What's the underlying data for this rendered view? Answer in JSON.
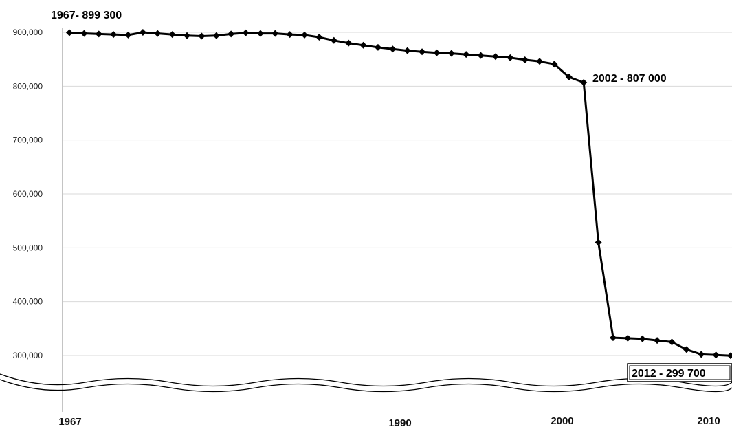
{
  "chart_data": {
    "type": "line",
    "title": "",
    "xlabel": "",
    "ylabel": "",
    "ylim": [
      300000,
      900000
    ],
    "y_axis_break_below": 300000,
    "grid": "horizontal",
    "yticks": [
      "300,000",
      "400,000",
      "500,000",
      "600,000",
      "700,000",
      "800,000",
      "900,000"
    ],
    "xticks": [
      "1967",
      "1990",
      "2000",
      "2010"
    ],
    "series": [
      {
        "x": [
          1967,
          1968,
          1969,
          1970,
          1971,
          1972,
          1973,
          1974,
          1975,
          1976,
          1977,
          1978,
          1979,
          1980,
          1981,
          1982,
          1983,
          1984,
          1985,
          1986,
          1987,
          1988,
          1989,
          1990,
          1991,
          1992,
          1993,
          1994,
          1995,
          1996,
          1997,
          1998,
          1999,
          2000,
          2001,
          2002,
          2003,
          2004,
          2005,
          2006,
          2007,
          2008,
          2009,
          2010,
          2011,
          2012
        ],
        "values": [
          899300,
          898000,
          897000,
          896000,
          895000,
          900000,
          898000,
          896000,
          894000,
          893000,
          894000,
          897000,
          899000,
          898000,
          898000,
          896000,
          895000,
          891000,
          885000,
          880000,
          876000,
          872000,
          869000,
          866000,
          864000,
          862000,
          861000,
          859000,
          857000,
          855000,
          853000,
          849000,
          846000,
          841000,
          817000,
          807000,
          510000,
          333000,
          332000,
          331000,
          328000,
          325000,
          311000,
          302000,
          301000,
          299700
        ]
      }
    ],
    "annotations": [
      {
        "text": "1967- 899 300"
      },
      {
        "text": "2002 - 807 000"
      },
      {
        "text": "2012 - 299 700"
      }
    ]
  }
}
